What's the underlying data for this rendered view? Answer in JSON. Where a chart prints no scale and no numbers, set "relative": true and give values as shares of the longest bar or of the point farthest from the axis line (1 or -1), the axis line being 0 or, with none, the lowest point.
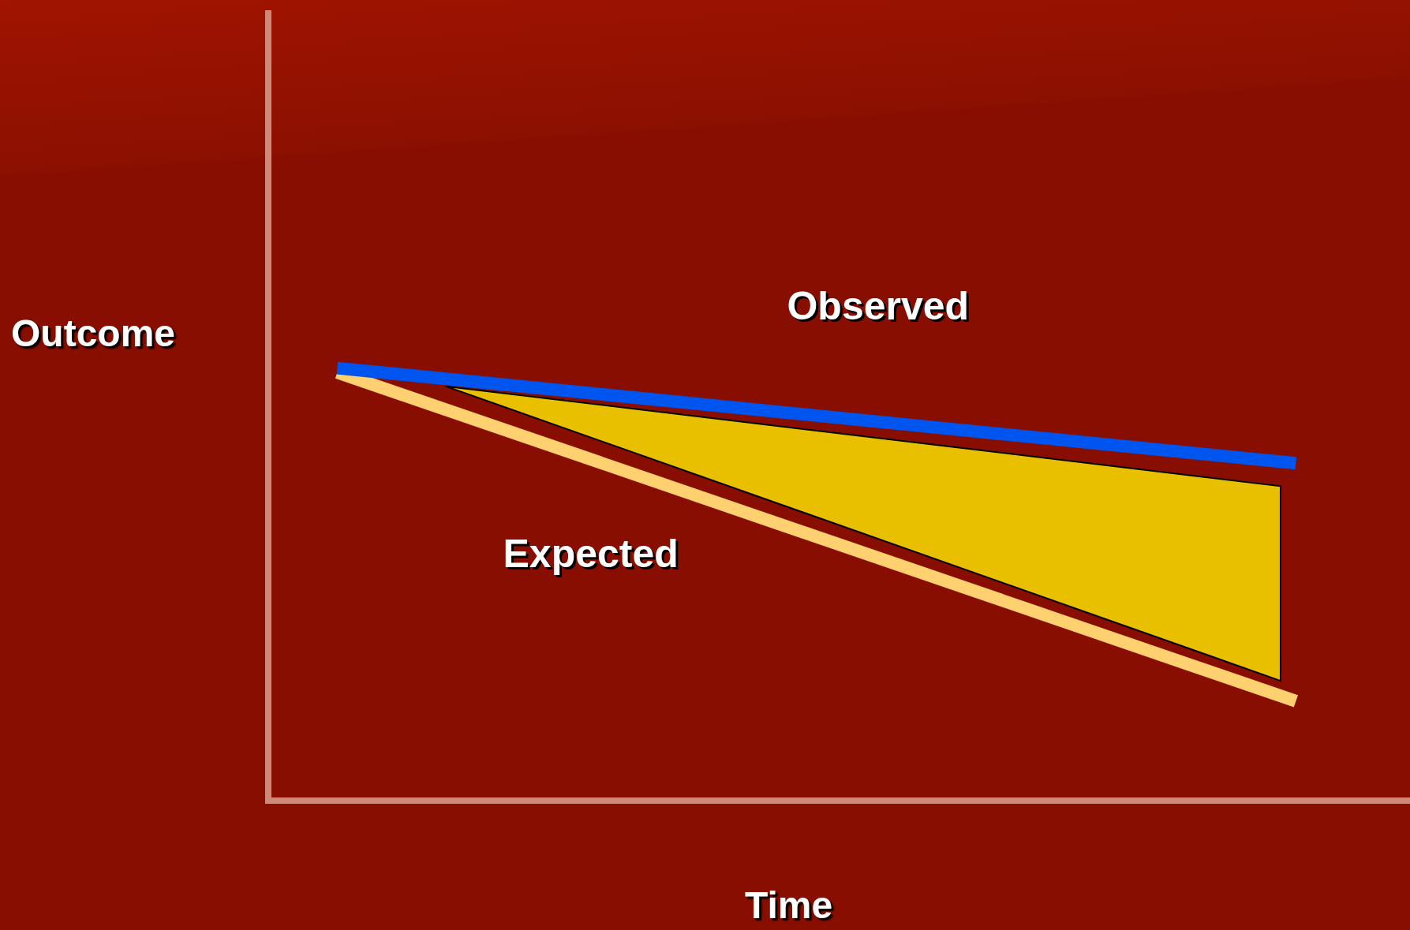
{
  "chart_data": {
    "type": "line",
    "relative": true,
    "xlabel": "Time",
    "ylabel": "Outcome",
    "categories": [
      null,
      null
    ],
    "legend": false,
    "grid": false,
    "tick_labels": false,
    "ref_lines": [
      {
        "axis": "y",
        "value": 0,
        "color": "#d08878"
      }
    ],
    "marker": "none",
    "line_style": "solid",
    "series": [
      {
        "name": "Observed",
        "color": "#0055ee",
        "values": [
          1.0,
          0.78
        ]
      },
      {
        "name": "Expected",
        "color": "#ffd070",
        "values": [
          0.99,
          0.23
        ]
      }
    ]
  }
}
